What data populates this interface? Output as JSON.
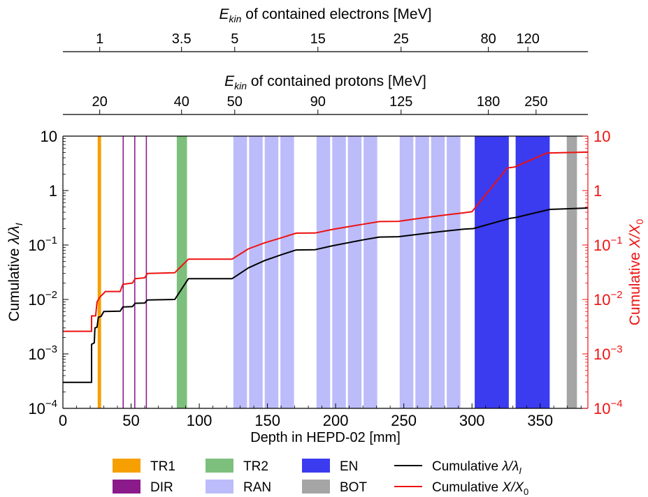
{
  "chart_data": {
    "type": "line",
    "xlabel": "Depth in HEPD-02 [mm]",
    "xlim": [
      0,
      385
    ],
    "x_ticks": [
      0,
      50,
      100,
      150,
      200,
      250,
      300,
      350
    ],
    "y_left": {
      "label_prefix": "Cumulative ",
      "label_sym": "λ/λ",
      "label_sub": "I",
      "scale": "log",
      "ylim": [
        0.0001,
        10
      ],
      "ticks": [
        {
          "value": 0.0001,
          "base": "10",
          "exp": "−4"
        },
        {
          "value": 0.001,
          "base": "10",
          "exp": "−3"
        },
        {
          "value": 0.01,
          "base": "10",
          "exp": "−2"
        },
        {
          "value": 0.1,
          "base": "10",
          "exp": "−1"
        },
        {
          "value": 1,
          "base": "1",
          "exp": ""
        },
        {
          "value": 10,
          "base": "10",
          "exp": ""
        }
      ]
    },
    "y_right": {
      "label_prefix": "Cumulative ",
      "label_sym": "X/X",
      "label_sub": "0",
      "color": "#ee1111",
      "scale": "log",
      "ylim": [
        0.0001,
        10
      ],
      "ticks": [
        {
          "value": 0.0001,
          "base": "10",
          "exp": "−4"
        },
        {
          "value": 0.001,
          "base": "10",
          "exp": "−3"
        },
        {
          "value": 0.01,
          "base": "10",
          "exp": "−2"
        },
        {
          "value": 0.1,
          "base": "10",
          "exp": "−1"
        },
        {
          "value": 1,
          "base": "1",
          "exp": ""
        },
        {
          "value": 10,
          "base": "10",
          "exp": ""
        }
      ]
    },
    "top_axis_electrons": {
      "label_sym": "E",
      "label_sub": "kin",
      "label_rest": " of contained electrons [MeV]",
      "ticks": [
        {
          "depth": 27,
          "label": "1"
        },
        {
          "depth": 87,
          "label": "3.5"
        },
        {
          "depth": 126,
          "label": "5"
        },
        {
          "depth": 187,
          "label": "15"
        },
        {
          "depth": 248,
          "label": "25"
        },
        {
          "depth": 312,
          "label": "80"
        },
        {
          "depth": 341,
          "label": "120"
        }
      ]
    },
    "top_axis_protons": {
      "label_sym": "E",
      "label_sub": "kin",
      "label_rest": " of contained protons [MeV]",
      "ticks": [
        {
          "depth": 27,
          "label": "20"
        },
        {
          "depth": 87,
          "label": "40"
        },
        {
          "depth": 126,
          "label": "50"
        },
        {
          "depth": 187,
          "label": "90"
        },
        {
          "depth": 248,
          "label": "125"
        },
        {
          "depth": 312,
          "label": "180"
        },
        {
          "depth": 347,
          "label": "250"
        }
      ]
    },
    "regions": [
      {
        "group": "TR1",
        "x0": 25.5,
        "x1": 28.0
      },
      {
        "group": "DIR",
        "x0": 43.8,
        "x1": 44.6
      },
      {
        "group": "DIR",
        "x0": 52.3,
        "x1": 53.1
      },
      {
        "group": "DIR",
        "x0": 60.8,
        "x1": 61.6
      },
      {
        "group": "TR2",
        "x0": 83.5,
        "x1": 91.0
      },
      {
        "group": "RAN",
        "x0": 125.0,
        "x1": 135.0
      },
      {
        "group": "RAN",
        "x0": 136.5,
        "x1": 146.5
      },
      {
        "group": "RAN",
        "x0": 148.0,
        "x1": 158.0
      },
      {
        "group": "RAN",
        "x0": 159.5,
        "x1": 169.5
      },
      {
        "group": "RAN",
        "x0": 186.0,
        "x1": 196.0
      },
      {
        "group": "RAN",
        "x0": 197.5,
        "x1": 207.5
      },
      {
        "group": "RAN",
        "x0": 209.0,
        "x1": 219.0
      },
      {
        "group": "RAN",
        "x0": 220.5,
        "x1": 230.5
      },
      {
        "group": "RAN",
        "x0": 247.0,
        "x1": 257.0
      },
      {
        "group": "RAN",
        "x0": 258.5,
        "x1": 268.5
      },
      {
        "group": "RAN",
        "x0": 270.0,
        "x1": 280.0
      },
      {
        "group": "RAN",
        "x0": 281.5,
        "x1": 291.5
      },
      {
        "group": "EN",
        "x0": 302.0,
        "x1": 327.0
      },
      {
        "group": "EN",
        "x0": 332.0,
        "x1": 357.0
      },
      {
        "group": "BOT",
        "x0": 369.5,
        "x1": 377.0
      }
    ],
    "region_colors": {
      "TR1": "#f5a000",
      "DIR": "#8b1a8b",
      "TR2": "#7dbf7d",
      "RAN": "#bcbcfa",
      "EN": "#3b3bf0",
      "BOT": "#a5a5a5"
    },
    "series": [
      {
        "key": "lambda",
        "color": "#000000",
        "points": [
          [
            0,
            0.0003
          ],
          [
            21,
            0.0003
          ],
          [
            21,
            0.0015
          ],
          [
            23,
            0.0016
          ],
          [
            23.5,
            0.003
          ],
          [
            25,
            0.0031
          ],
          [
            26,
            0.0047
          ],
          [
            28,
            0.0049
          ],
          [
            30,
            0.006
          ],
          [
            42,
            0.0061
          ],
          [
            44,
            0.0073
          ],
          [
            51,
            0.0074
          ],
          [
            53,
            0.0085
          ],
          [
            60,
            0.0086
          ],
          [
            62,
            0.0098
          ],
          [
            82,
            0.01
          ],
          [
            92,
            0.024
          ],
          [
            124,
            0.024
          ],
          [
            136,
            0.038
          ],
          [
            148,
            0.052
          ],
          [
            160,
            0.066
          ],
          [
            171,
            0.081
          ],
          [
            185,
            0.082
          ],
          [
            197,
            0.096
          ],
          [
            209,
            0.11
          ],
          [
            220,
            0.124
          ],
          [
            232,
            0.14
          ],
          [
            246,
            0.142
          ],
          [
            258,
            0.155
          ],
          [
            270,
            0.168
          ],
          [
            282,
            0.182
          ],
          [
            294,
            0.196
          ],
          [
            301,
            0.2
          ],
          [
            328,
            0.31
          ],
          [
            332,
            0.32
          ],
          [
            357,
            0.45
          ],
          [
            386,
            0.48
          ]
        ]
      },
      {
        "key": "x0",
        "color": "#ee1111",
        "points": [
          [
            0,
            0.0026
          ],
          [
            21,
            0.0026
          ],
          [
            21,
            0.005
          ],
          [
            24,
            0.005
          ],
          [
            25,
            0.009
          ],
          [
            27,
            0.011
          ],
          [
            30,
            0.013
          ],
          [
            31,
            0.014
          ],
          [
            42,
            0.014
          ],
          [
            44,
            0.019
          ],
          [
            51,
            0.02
          ],
          [
            53,
            0.024
          ],
          [
            60,
            0.025
          ],
          [
            62,
            0.03
          ],
          [
            82,
            0.031
          ],
          [
            92,
            0.055
          ],
          [
            124,
            0.055
          ],
          [
            136,
            0.085
          ],
          [
            148,
            0.11
          ],
          [
            160,
            0.135
          ],
          [
            171,
            0.165
          ],
          [
            185,
            0.166
          ],
          [
            197,
            0.192
          ],
          [
            209,
            0.216
          ],
          [
            220,
            0.24
          ],
          [
            232,
            0.27
          ],
          [
            246,
            0.272
          ],
          [
            258,
            0.3
          ],
          [
            270,
            0.33
          ],
          [
            282,
            0.36
          ],
          [
            294,
            0.39
          ],
          [
            300,
            0.41
          ],
          [
            326,
            2.6
          ],
          [
            331,
            2.7
          ],
          [
            355,
            4.9
          ],
          [
            386,
            5.1
          ]
        ]
      }
    ],
    "legend": {
      "placement": "bottom",
      "entries": [
        {
          "type": "patch",
          "group": "TR1",
          "label": "TR1"
        },
        {
          "type": "patch",
          "group": "TR2",
          "label": "TR2"
        },
        {
          "type": "patch",
          "group": "EN",
          "label": "EN"
        },
        {
          "type": "line",
          "series": "lambda",
          "prefix": "Cumulative ",
          "sym": "λ/λ",
          "sub": "I"
        },
        {
          "type": "patch",
          "group": "DIR",
          "label": "DIR"
        },
        {
          "type": "patch",
          "group": "RAN",
          "label": "RAN"
        },
        {
          "type": "patch",
          "group": "BOT",
          "label": "BOT"
        },
        {
          "type": "line",
          "series": "x0",
          "prefix": "Cumulative ",
          "sym": "X/X",
          "sub": "0"
        }
      ]
    }
  }
}
